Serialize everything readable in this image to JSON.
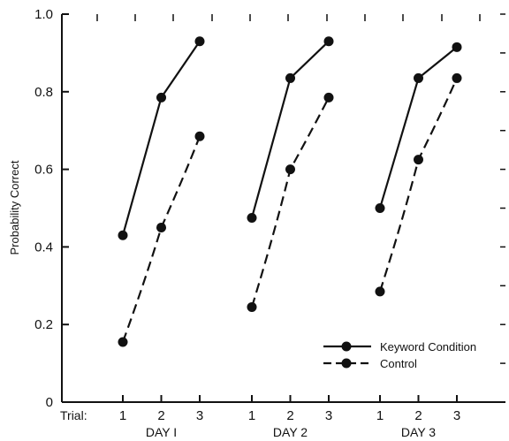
{
  "chart_data": {
    "type": "line",
    "ylabel": "Probability Correct",
    "ylim": [
      0,
      1.0
    ],
    "yticks": [
      "0",
      "0.2",
      "0.4",
      "0.6",
      "0.8",
      "1.0"
    ],
    "trial_axis_label": "Trial:",
    "groups": [
      {
        "label": "DAY I",
        "trials": [
          "1",
          "2",
          "3"
        ]
      },
      {
        "label": "DAY 2",
        "trials": [
          "1",
          "2",
          "3"
        ]
      },
      {
        "label": "DAY 3",
        "trials": [
          "1",
          "2",
          "3"
        ]
      }
    ],
    "series": [
      {
        "name": "Keyword Condition",
        "style": "solid",
        "values": [
          [
            0.43,
            0.785,
            0.93
          ],
          [
            0.475,
            0.835,
            0.93
          ],
          [
            0.5,
            0.835,
            0.915
          ]
        ]
      },
      {
        "name": "Control",
        "style": "dashed",
        "values": [
          [
            0.155,
            0.45,
            0.685
          ],
          [
            0.245,
            0.6,
            0.785
          ],
          [
            0.285,
            0.625,
            0.835
          ]
        ]
      }
    ],
    "legend_position": "bottom-right",
    "grid": false
  }
}
